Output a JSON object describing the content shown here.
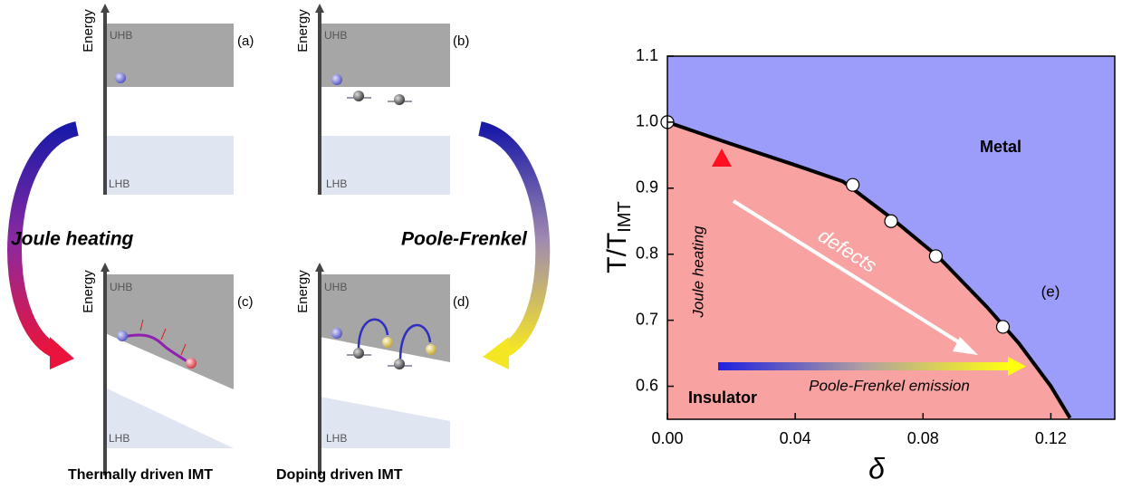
{
  "diagram": {
    "panels": [
      {
        "label": "(a)",
        "energy": "Energy",
        "uhb": "UHB",
        "lhb": "LHB"
      },
      {
        "label": "(b)",
        "energy": "Energy",
        "uhb": "UHB",
        "lhb": "LHB"
      },
      {
        "label": "(c)",
        "energy": "Energy",
        "uhb": "UHB",
        "lhb": "LHB"
      },
      {
        "label": "(d)",
        "energy": "Energy",
        "uhb": "UHB",
        "lhb": "LHB"
      }
    ],
    "left_arrow": "Joule heating",
    "right_arrow": "Poole-Frenkel",
    "captions": [
      "Thermally driven IMT",
      "Doping driven IMT"
    ]
  },
  "chart_data": {
    "type": "line",
    "panel_label": "(e)",
    "xlabel": "δ",
    "ylabel": {
      "text": "T/T",
      "sub": "IMT"
    },
    "regions": {
      "above": "Metal",
      "below": "Insulator",
      "above_color": "#9c9cfb",
      "below_color": "#f8a2a2"
    },
    "annotations": {
      "vertical_arrow": "Joule heating",
      "horizontal_arrow": "Poole-Frenkel emission",
      "diagonal_arrow": "defects"
    },
    "xlim": [
      0,
      0.14
    ],
    "ylim": [
      0.55,
      1.1
    ],
    "xticks": [
      {
        "value": 0,
        "label": "0.00"
      },
      0.04,
      0.08,
      0.12
    ],
    "yticks": [
      0.6,
      0.7,
      0.8,
      0.9,
      {
        "value": 1.0,
        "label": "1.0"
      },
      1.1
    ],
    "series": [
      {
        "color": "#000000",
        "marker": "line",
        "x": [
          0,
          0.02,
          0.04,
          0.055,
          0.07,
          0.085,
          0.1,
          0.11,
          0.12,
          0.126
        ],
        "values": [
          1.0,
          0.967,
          0.935,
          0.91,
          0.855,
          0.795,
          0.72,
          0.665,
          0.6,
          0.552
        ]
      },
      {
        "color": "#ffffff",
        "marker": "circle",
        "x": [
          0,
          0.058,
          0.07,
          0.084,
          0.105
        ],
        "values": [
          1.0,
          0.905,
          0.85,
          0.797,
          0.69
        ]
      }
    ]
  }
}
